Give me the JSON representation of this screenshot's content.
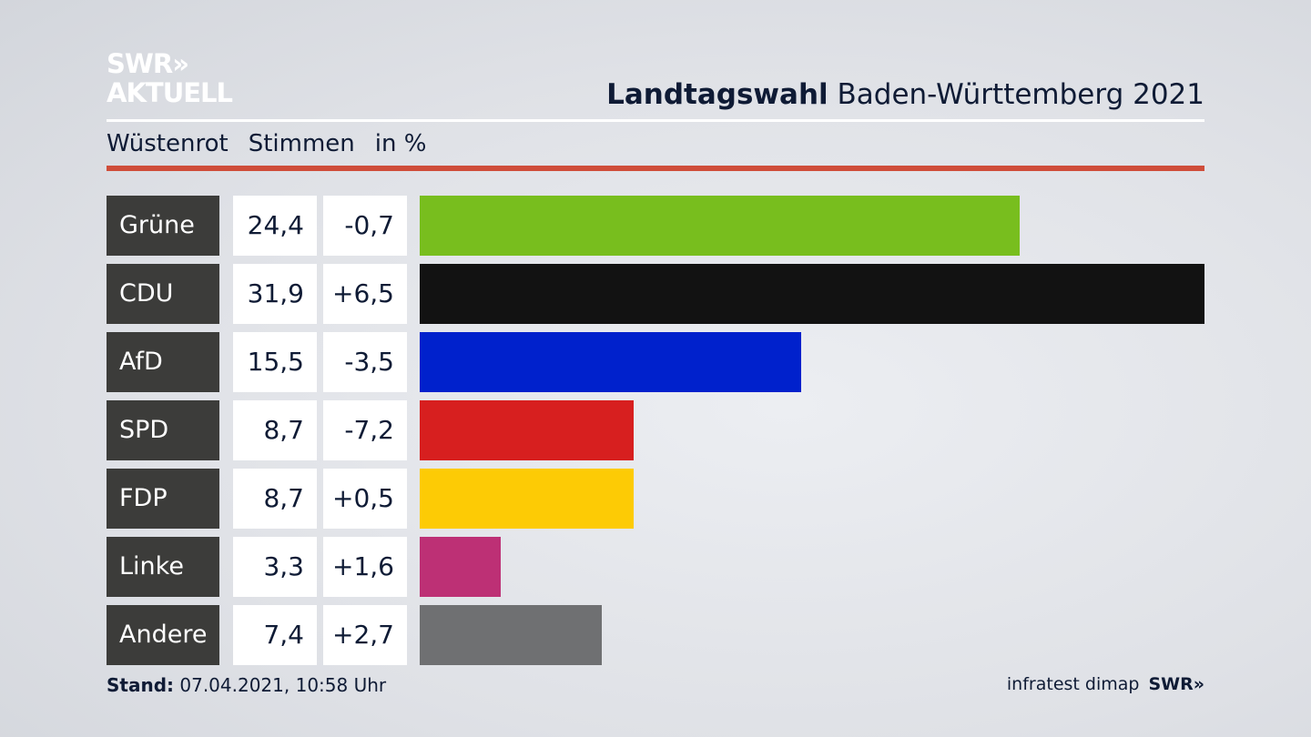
{
  "header": {
    "logo_line1": "SWR»",
    "logo_line2": "AKTUELL",
    "title_bold": "Landtagswahl",
    "title_rest": " Baden-Württemberg 2021"
  },
  "subheader": {
    "place": "Wüstenrot",
    "metric": "Stimmen",
    "unit": "in %"
  },
  "chart_data": {
    "type": "bar",
    "title": "Landtagswahl Baden-Württemberg 2021",
    "categories": [
      "Grüne",
      "CDU",
      "AfD",
      "SPD",
      "FDP",
      "Linke",
      "Andere"
    ],
    "values": [
      24.4,
      31.9,
      15.5,
      8.7,
      8.7,
      3.3,
      7.4
    ],
    "values_text": [
      "24,4",
      "31,9",
      "15,5",
      "8,7",
      "8,7",
      "3,3",
      "7,4"
    ],
    "diff_text": [
      "-0,7",
      "+6,5",
      "-3,5",
      "-7,2",
      "+0,5",
      "+1,6",
      "+2,7"
    ],
    "diff": [
      -0.7,
      6.5,
      -3.5,
      -7.2,
      0.5,
      1.6,
      2.7
    ],
    "colors": [
      "#78be1e",
      "#121212",
      "#0021cc",
      "#d71f1f",
      "#fdcb05",
      "#bd3075",
      "#6f7072"
    ],
    "xlim": [
      0,
      31.9
    ]
  },
  "footer": {
    "stand_label": "Stand:",
    "stand_value": " 07.04.2021, 10:58 Uhr",
    "source": "infratest dimap",
    "brand": "SWR»"
  }
}
